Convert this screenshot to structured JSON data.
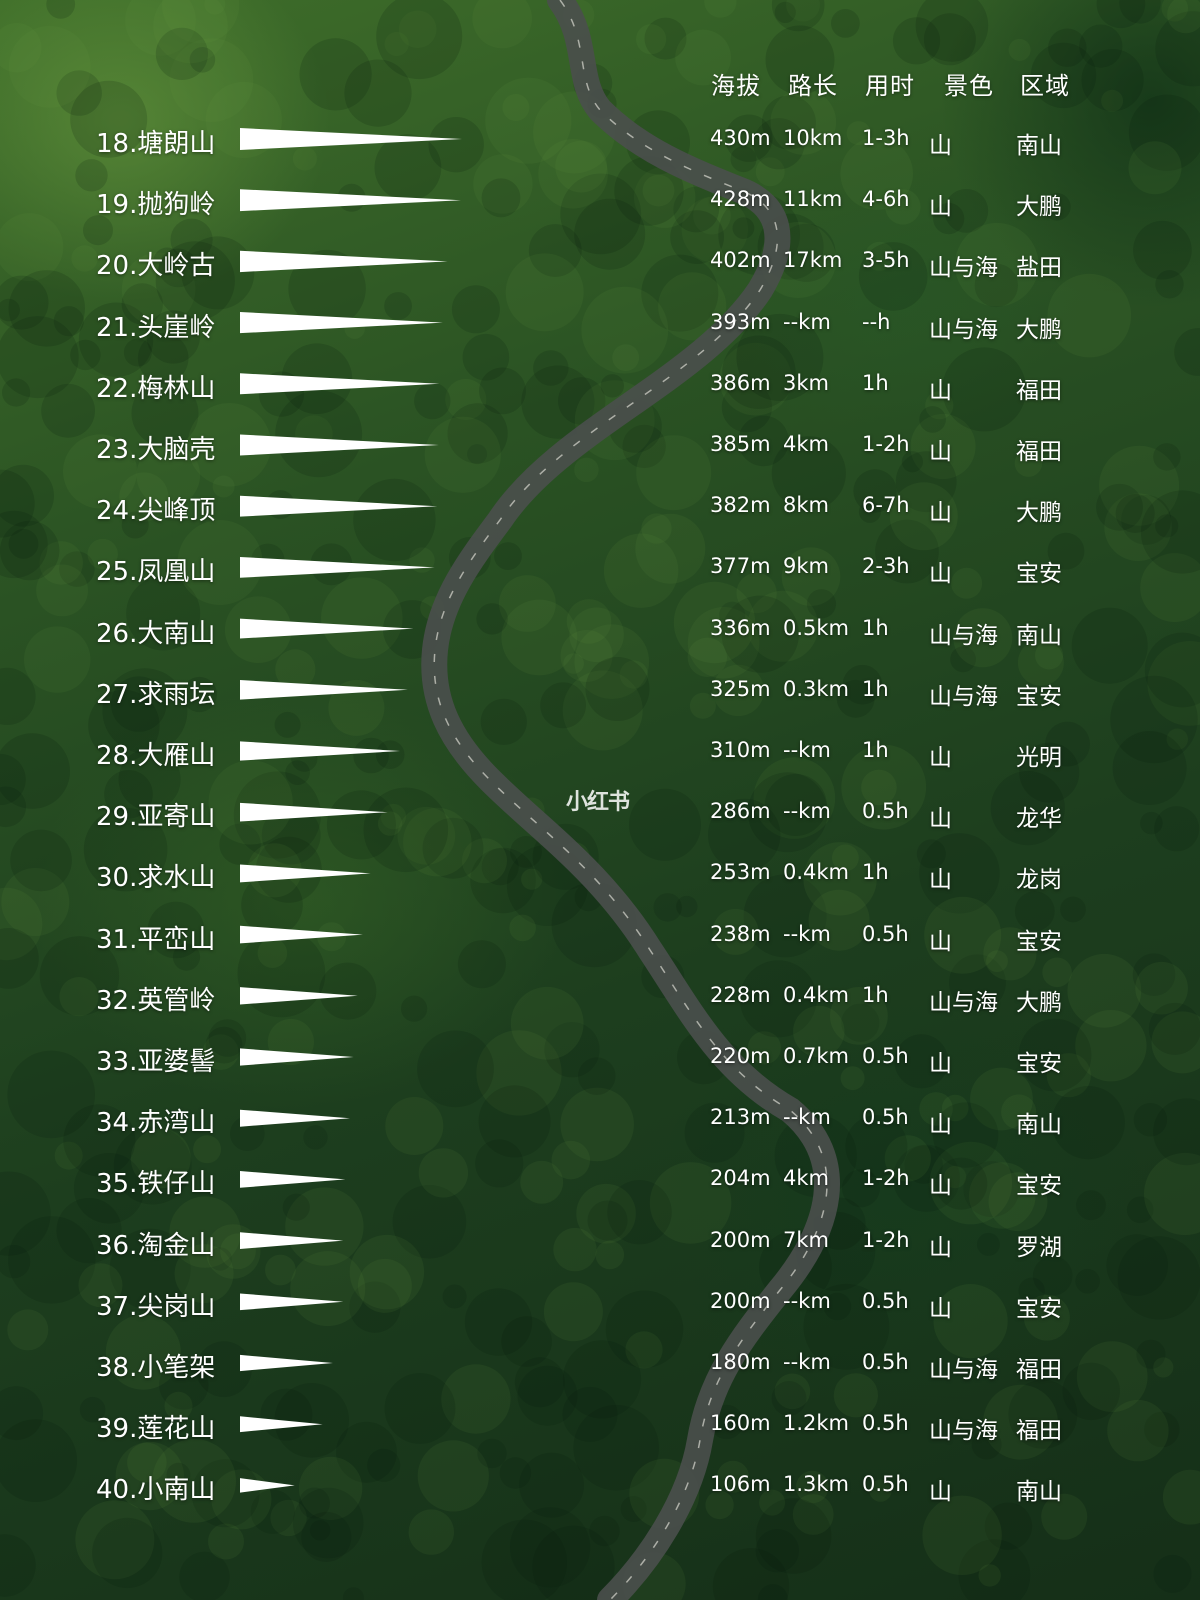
{
  "headers": {
    "altitude": "海拔",
    "length": "路长",
    "duration": "用时",
    "scenery": "景色",
    "region": "区域"
  },
  "watermark": "小红书",
  "colors": {
    "text": "#ffffff",
    "wedge": "#ffffff",
    "forest": "#244a22",
    "road": "#4a4f4c"
  },
  "chart_data": {
    "type": "bar",
    "orientation": "horizontal",
    "title": "",
    "xlabel": "海拔",
    "ylabel": "",
    "value_unit": "m",
    "xlim": [
      0,
      430
    ],
    "categories": [
      "18.塘朗山",
      "19.抛狗岭",
      "20.大岭古",
      "21.头崖岭",
      "22.梅林山",
      "23.大脑壳",
      "24.尖峰顶",
      "25.凤凰山",
      "26.大南山",
      "27.求雨坛",
      "28.大雁山",
      "29.亚寄山",
      "30.求水山",
      "31.平峦山",
      "32.英管岭",
      "33.亚婆髻",
      "34.赤湾山",
      "35.铁仔山",
      "36.淘金山",
      "37.尖岗山",
      "38.小笔架",
      "39.莲花山",
      "40.小南山"
    ],
    "values": [
      430,
      428,
      402,
      393,
      386,
      385,
      382,
      377,
      336,
      325,
      310,
      286,
      253,
      238,
      228,
      220,
      213,
      204,
      200,
      200,
      180,
      160,
      106
    ],
    "table": {
      "altitude": [
        "430m",
        "428m",
        "402m",
        "393m",
        "386m",
        "385m",
        "382m",
        "377m",
        "336m",
        "325m",
        "310m",
        "286m",
        "253m",
        "238m",
        "228m",
        "220m",
        "213m",
        "204m",
        "200m",
        "200m",
        "180m",
        "160m",
        "106m"
      ],
      "length": [
        "10km",
        "11km",
        "17km",
        "--km",
        "3km",
        "4km",
        "8km",
        "9km",
        "0.5km",
        "0.3km",
        "--km",
        "--km",
        "0.4km",
        "--km",
        "0.4km",
        "0.7km",
        "--km",
        "4km",
        "7km",
        "--km",
        "--km",
        "1.2km",
        "1.3km"
      ],
      "duration": [
        "1-3h",
        "4-6h",
        "3-5h",
        "--h",
        "1h",
        "1-2h",
        "6-7h",
        "2-3h",
        "1h",
        "1h",
        "1h",
        "0.5h",
        "1h",
        "0.5h",
        "1h",
        "0.5h",
        "0.5h",
        "1-2h",
        "1-2h",
        "0.5h",
        "0.5h",
        "0.5h",
        "0.5h"
      ],
      "scenery": [
        "山",
        "山",
        "山与海",
        "山与海",
        "山",
        "山",
        "山",
        "山",
        "山与海",
        "山与海",
        "山",
        "山",
        "山",
        "山",
        "山与海",
        "山",
        "山",
        "山",
        "山",
        "山",
        "山与海",
        "山与海",
        "山"
      ],
      "region": [
        "南山",
        "大鹏",
        "盐田",
        "大鹏",
        "福田",
        "福田",
        "大鹏",
        "宝安",
        "南山",
        "宝安",
        "光明",
        "龙华",
        "龙岗",
        "宝安",
        "大鹏",
        "宝安",
        "南山",
        "宝安",
        "罗湖",
        "宝安",
        "福田",
        "福田",
        "南山"
      ]
    }
  }
}
